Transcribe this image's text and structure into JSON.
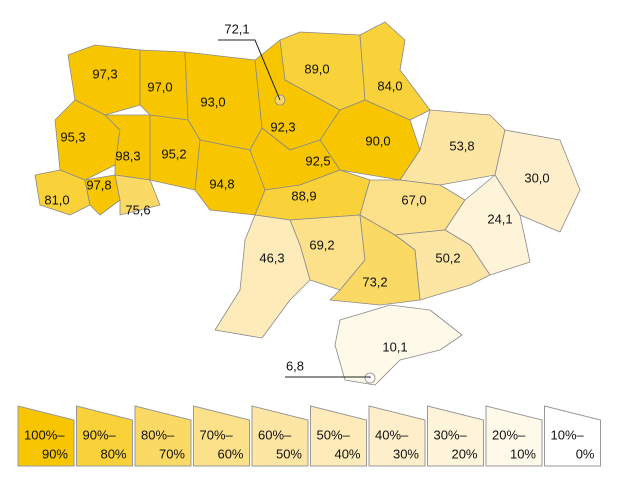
{
  "map": {
    "regions": [
      {
        "value": 97.3,
        "label": "97,3"
      },
      {
        "value": 97.0,
        "label": "97,0"
      },
      {
        "value": 93.0,
        "label": "93,0"
      },
      {
        "value": 92.3,
        "label": "92,3"
      },
      {
        "value": 89.0,
        "label": "89,0"
      },
      {
        "value": 84.0,
        "label": "84,0"
      },
      {
        "value": 90.0,
        "label": "90,0"
      },
      {
        "value": 53.8,
        "label": "53,8"
      },
      {
        "value": 30.0,
        "label": "30,0"
      },
      {
        "value": 95.3,
        "label": "95,3"
      },
      {
        "value": 98.3,
        "label": "98,3"
      },
      {
        "value": 95.2,
        "label": "95,2"
      },
      {
        "value": 94.8,
        "label": "94,8"
      },
      {
        "value": 92.5,
        "label": "92,5"
      },
      {
        "value": 88.9,
        "label": "88,9"
      },
      {
        "value": 67.0,
        "label": "67,0"
      },
      {
        "value": 24.1,
        "label": "24,1"
      },
      {
        "value": 81.0,
        "label": "81,0"
      },
      {
        "value": 97.8,
        "label": "97,8"
      },
      {
        "value": 75.6,
        "label": "75,6"
      },
      {
        "value": 69.2,
        "label": "69,2"
      },
      {
        "value": 46.3,
        "label": "46,3"
      },
      {
        "value": 50.2,
        "label": "50,2"
      },
      {
        "value": 73.2,
        "label": "73,2"
      },
      {
        "value": 10.1,
        "label": "10,1"
      },
      {
        "value": 72.1,
        "label": "72,1"
      },
      {
        "value": 6.8,
        "label": "6,8"
      }
    ],
    "legend": [
      {
        "high": {
          "value": 100,
          "label": "100%–"
        },
        "low": {
          "value": 90,
          "label": "90%"
        },
        "color": "#f7c600"
      },
      {
        "high": {
          "value": 90,
          "label": "90%–"
        },
        "low": {
          "value": 80,
          "label": "80%"
        },
        "color": "#f9d138"
      },
      {
        "high": {
          "value": 80,
          "label": "80%–"
        },
        "low": {
          "value": 70,
          "label": "70%"
        },
        "color": "#fad965"
      },
      {
        "high": {
          "value": 70,
          "label": "70%–"
        },
        "low": {
          "value": 60,
          "label": "60%"
        },
        "color": "#fce08a"
      },
      {
        "high": {
          "value": 60,
          "label": "60%–"
        },
        "low": {
          "value": 50,
          "label": "50%"
        },
        "color": "#fde6a4"
      },
      {
        "high": {
          "value": 50,
          "label": "50%–"
        },
        "low": {
          "value": 40,
          "label": "40%"
        },
        "color": "#fdebb9"
      },
      {
        "high": {
          "value": 40,
          "label": "40%–"
        },
        "low": {
          "value": 30,
          "label": "30%"
        },
        "color": "#feefca"
      },
      {
        "high": {
          "value": 30,
          "label": "30%–"
        },
        "low": {
          "value": 20,
          "label": "20%"
        },
        "color": "#fef4da"
      },
      {
        "high": {
          "value": 20,
          "label": "20%–"
        },
        "low": {
          "value": 10,
          "label": "10%"
        },
        "color": "#fff9ea"
      },
      {
        "high": {
          "value": 10,
          "label": "10%–"
        },
        "low": {
          "value": 0,
          "label": "0%"
        },
        "color": "#ffffff"
      }
    ]
  }
}
